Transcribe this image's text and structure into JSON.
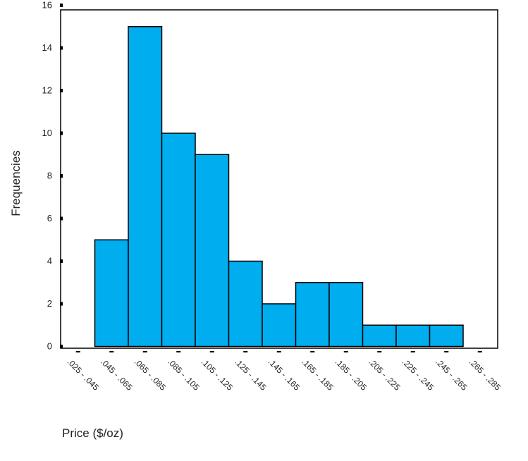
{
  "chart_data": {
    "type": "bar",
    "title": "",
    "xlabel": "Price ($/oz)",
    "ylabel": "Frequencies",
    "ylim": [
      0,
      16
    ],
    "yticks": [
      0,
      2,
      4,
      6,
      8,
      10,
      12,
      14,
      16
    ],
    "grid": false,
    "legend": "none",
    "bar_color": "#00adee",
    "categories": [
      ".025 - .045",
      ".045 - .065",
      ".065 - .085",
      ".085 - .105",
      ".105 - .125",
      ".125 - .145",
      ".145 - .165",
      ".165 - .185",
      ".185 - .205",
      ".205 - .225",
      ".225 - .245",
      ".245 - .265",
      ".265 - .285"
    ],
    "values": [
      0,
      5,
      15,
      10,
      9,
      4,
      2,
      3,
      3,
      1,
      1,
      1,
      0
    ]
  }
}
